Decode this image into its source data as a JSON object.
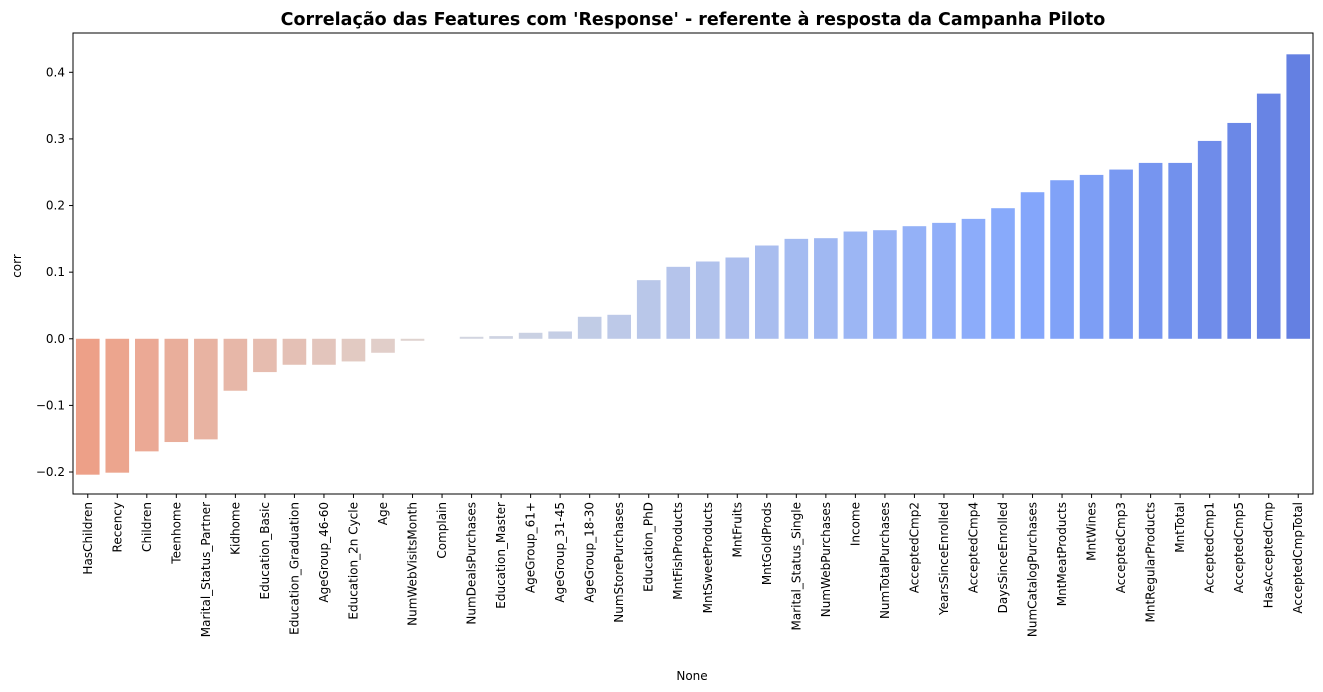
{
  "chart_data": {
    "type": "bar",
    "title": "Correlação das Features com 'Response' - referente à resposta da Campanha Piloto",
    "xlabel": "None",
    "ylabel": "corr",
    "ylim": [
      -0.233,
      0.459
    ],
    "yticks": [
      -0.2,
      -0.1,
      0.0,
      0.1,
      0.2,
      0.3,
      0.4
    ],
    "ytick_labels": [
      "−0.2",
      "−0.1",
      "0.0",
      "0.1",
      "0.2",
      "0.3",
      "0.4"
    ],
    "grid": false,
    "palette": "coolwarm_r",
    "categories": [
      "HasChildren",
      "Recency",
      "Children",
      "Teenhome",
      "Marital_Status_Partner",
      "Kidhome",
      "Education_Basic",
      "Education_Graduation",
      "AgeGroup_46-60",
      "Education_2n Cycle",
      "Age",
      "NumWebVisitsMonth",
      "Complain",
      "NumDealsPurchases",
      "Education_Master",
      "AgeGroup_61+",
      "AgeGroup_31-45",
      "AgeGroup_18-30",
      "NumStorePurchases",
      "Education_PhD",
      "MntFishProducts",
      "MntSweetProducts",
      "MntFruits",
      "MntGoldProds",
      "Marital_Status_Single",
      "NumWebPurchases",
      "Income",
      "NumTotalPurchases",
      "AcceptedCmp2",
      "YearsSinceEnrolled",
      "AcceptedCmp4",
      "DaysSinceEnrolled",
      "NumCatalogPurchases",
      "MntMeatProducts",
      "MntWines",
      "AcceptedCmp3",
      "MntRegularProducts",
      "MntTotal",
      "AcceptedCmp1",
      "AcceptedCmp5",
      "HasAcceptedCmp",
      "AcceptedCmpTotal"
    ],
    "values": [
      -0.204,
      -0.201,
      -0.169,
      -0.155,
      -0.151,
      -0.078,
      -0.05,
      -0.039,
      -0.039,
      -0.034,
      -0.021,
      -0.003,
      0.0,
      0.003,
      0.004,
      0.009,
      0.011,
      0.033,
      0.036,
      0.088,
      0.108,
      0.116,
      0.122,
      0.14,
      0.15,
      0.151,
      0.161,
      0.163,
      0.169,
      0.174,
      0.18,
      0.196,
      0.22,
      0.238,
      0.246,
      0.254,
      0.264,
      0.264,
      0.297,
      0.324,
      0.368,
      0.427
    ]
  }
}
